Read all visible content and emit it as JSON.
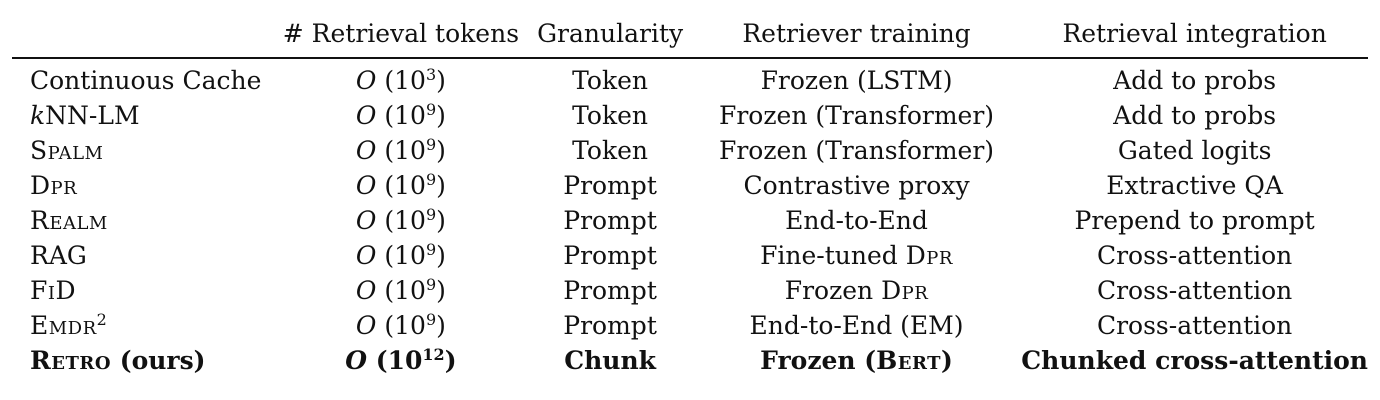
{
  "table": {
    "headers": [
      "",
      "# Retrieval tokens",
      "Granularity",
      "Retriever training",
      "Retrieval integration"
    ],
    "rows": [
      {
        "model": "Continuous Cache",
        "model_style": "plain",
        "model_sup": "",
        "tokens_exp": "3",
        "granularity": "Token",
        "training": "Frozen (LSTM)",
        "integration": "Add to probs",
        "bold": false
      },
      {
        "model": "kNN-LM",
        "model_style": "knn",
        "model_sup": "",
        "tokens_exp": "9",
        "granularity": "Token",
        "training": "Frozen (Transformer)",
        "integration": "Add to probs",
        "bold": false
      },
      {
        "model": "Spalm",
        "model_style": "sc",
        "model_sup": "",
        "tokens_exp": "9",
        "granularity": "Token",
        "training": "Frozen (Transformer)",
        "integration": "Gated logits",
        "bold": false
      },
      {
        "model": "Dpr",
        "model_style": "sc",
        "model_sup": "",
        "tokens_exp": "9",
        "granularity": "Prompt",
        "training": "Contrastive proxy",
        "integration": "Extractive QA",
        "bold": false
      },
      {
        "model": "Realm",
        "model_style": "sc",
        "model_sup": "",
        "tokens_exp": "9",
        "granularity": "Prompt",
        "training": "End-to-End",
        "integration": "Prepend to prompt",
        "bold": false
      },
      {
        "model": "RAG",
        "model_style": "plain",
        "model_sup": "",
        "tokens_exp": "9",
        "granularity": "Prompt",
        "training_prefix": "Fine-tuned ",
        "training_sc": "Dpr",
        "training_suffix": "",
        "integration": "Cross-attention",
        "bold": false
      },
      {
        "model": "FiD",
        "model_style": "sc",
        "model_sup": "",
        "tokens_exp": "9",
        "granularity": "Prompt",
        "training_prefix": "Frozen ",
        "training_sc": "Dpr",
        "training_suffix": "",
        "integration": "Cross-attention",
        "bold": false
      },
      {
        "model": "Emdr",
        "model_style": "sc",
        "model_sup": "2",
        "tokens_exp": "9",
        "granularity": "Prompt",
        "training": "End-to-End (EM)",
        "integration": "Cross-attention",
        "bold": false
      },
      {
        "model": "Retro",
        "model_suffix": " (ours)",
        "model_style": "sc",
        "model_sup": "",
        "tokens_exp": "12",
        "granularity": "Chunk",
        "training_prefix": "Frozen (",
        "training_sc": "Bert",
        "training_suffix": ")",
        "integration": "Chunked cross-attention",
        "bold": true
      }
    ]
  },
  "notation": {
    "big_o": "O",
    "base": "10",
    "open_paren": "(",
    "close_paren": ")"
  }
}
